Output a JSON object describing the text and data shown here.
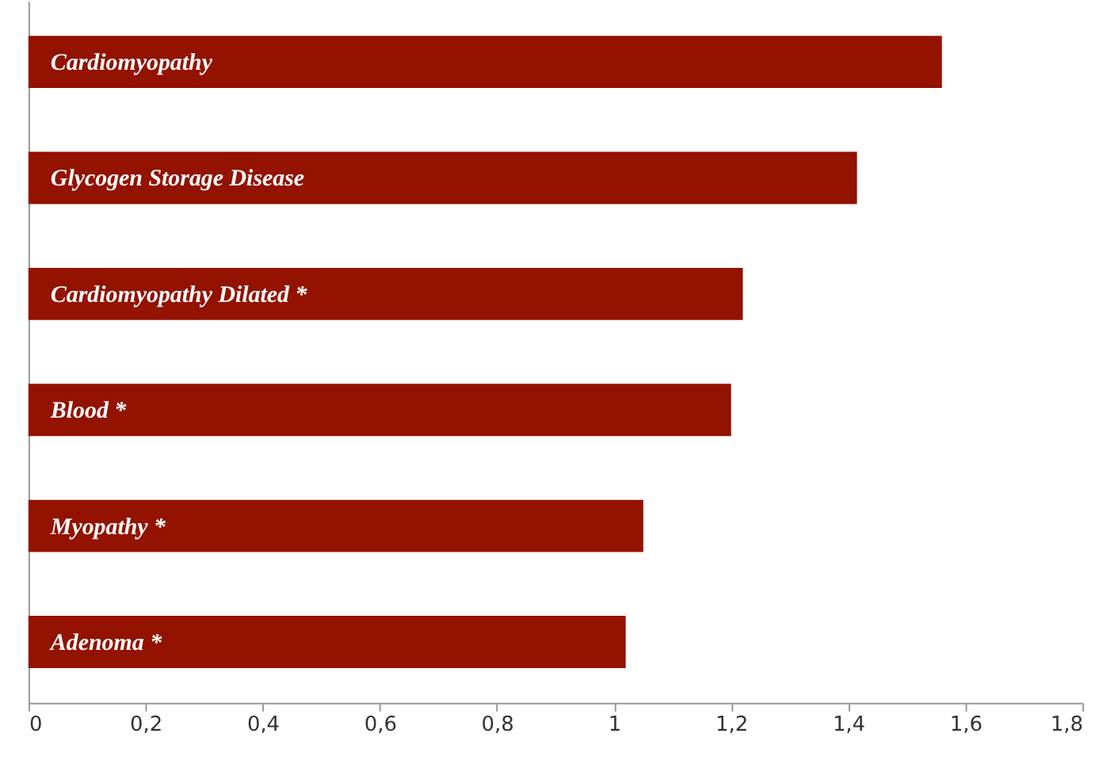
{
  "chart_data": {
    "type": "bar",
    "orientation": "horizontal",
    "categories": [
      "Cardiomyopathy",
      "Glycogen Storage Disease",
      "Cardiomyopathy Dilated *",
      "Blood *",
      "Myopathy *",
      "Adenoma *"
    ],
    "values": [
      1.56,
      1.415,
      1.22,
      1.2,
      1.05,
      1.02
    ],
    "color": "#931200",
    "xlim": [
      0,
      1.8
    ],
    "xticks": [
      0,
      {
        "value": 0.2,
        "label": "0,2"
      },
      {
        "value": 0.4,
        "label": "0,4"
      },
      {
        "value": 0.6,
        "label": "0,6"
      },
      {
        "value": 0.8,
        "label": "0,8"
      },
      1,
      {
        "value": 1.2,
        "label": "1,2"
      },
      {
        "value": 1.4,
        "label": "1,4"
      },
      {
        "value": 1.6,
        "label": "1,6"
      },
      {
        "value": 1.8,
        "label": "1,8"
      }
    ],
    "tick_labels": "x",
    "grid": false
  }
}
